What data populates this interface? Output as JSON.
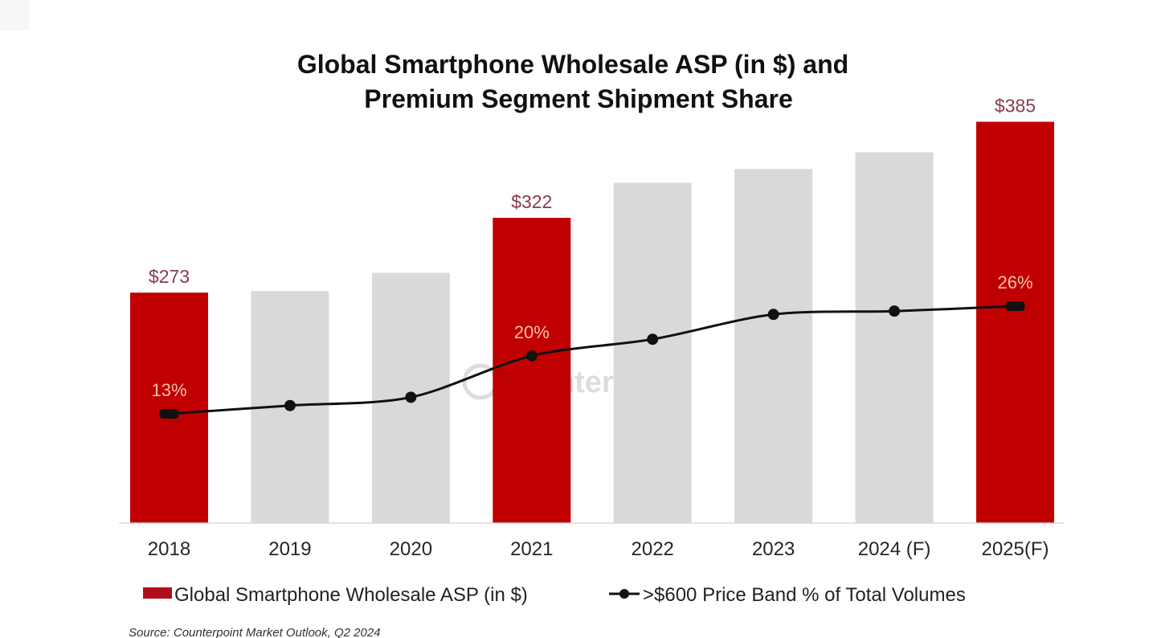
{
  "chart_data": {
    "type": "bar",
    "title": [
      "Global Smartphone Wholesale ASP (in $) and",
      "Premium Segment Shipment Share"
    ],
    "xlabel": "",
    "ylabel": "",
    "categories": [
      "2018",
      "2019",
      "2020",
      "2021",
      "2022",
      "2023",
      "2024 (F)",
      "2025(F)"
    ],
    "series": [
      {
        "name": "Global Smartphone Wholesale ASP (in $)",
        "type": "bar",
        "axis": "left",
        "values": [
          273,
          274,
          286,
          322,
          345,
          354,
          365,
          385
        ],
        "labels": [
          "$273",
          null,
          null,
          "$322",
          null,
          null,
          null,
          "$385"
        ],
        "highlight": [
          true,
          false,
          false,
          true,
          false,
          false,
          false,
          true
        ],
        "color_highlight": "#c00000",
        "color_default": "#d9d9d9"
      },
      {
        "name": ">$600 Price Band % of Total Volumes",
        "type": "line",
        "axis": "right",
        "unit": "%",
        "values": [
          13,
          14,
          15,
          20,
          22,
          25,
          25.4,
          26
        ],
        "labels": [
          "13%",
          null,
          null,
          "20%",
          null,
          null,
          null,
          "26%"
        ],
        "color": "#111111"
      }
    ],
    "ylim": [
      122,
      390
    ],
    "y2lim": [
      0,
      40
    ],
    "grid": false,
    "legend_position": "bottom",
    "source": "Source: Counterpoint Market Outlook, Q2 2024",
    "watermark": "Counterpoint"
  }
}
